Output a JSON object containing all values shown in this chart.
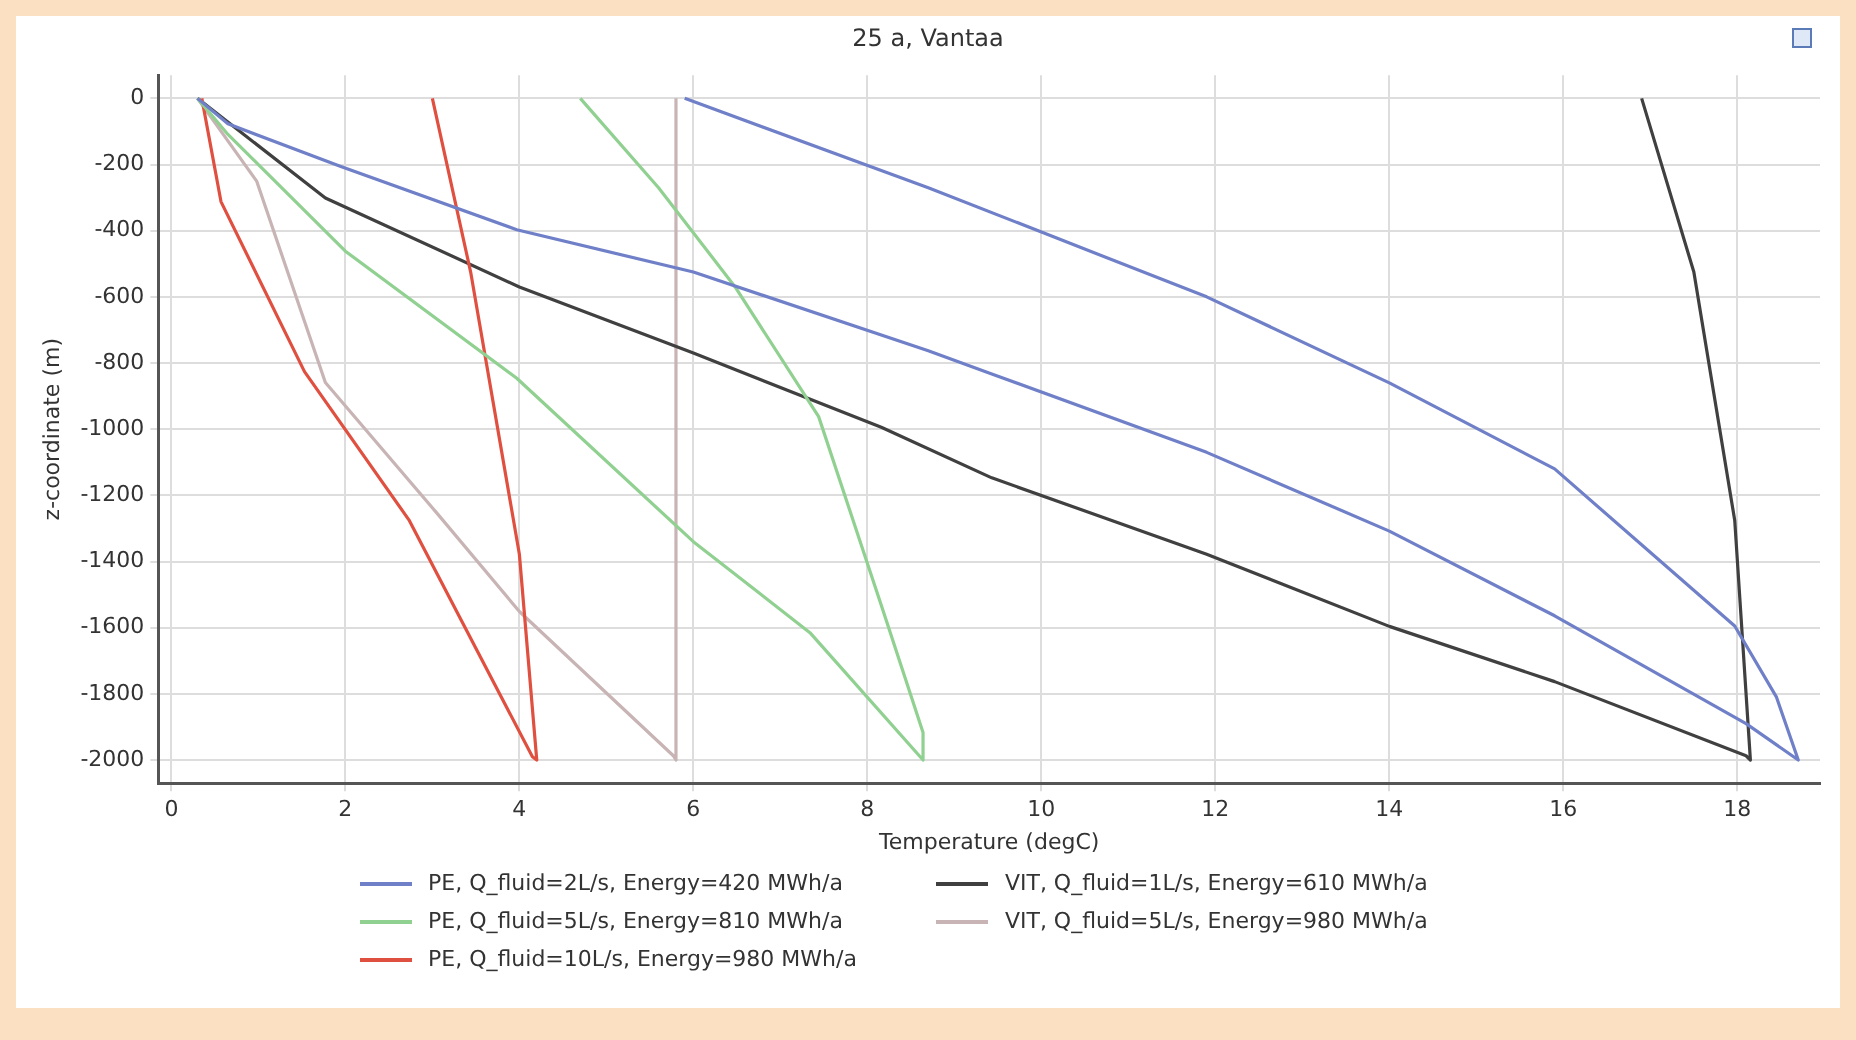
{
  "chart_data": {
    "type": "line",
    "title": "25 a, Vantaa",
    "xlabel": "Temperature (degC)",
    "ylabel": "z-coordinate (m)",
    "xlim": [
      -0.15,
      18.95
    ],
    "xticks": [
      0,
      2,
      4,
      6,
      8,
      10,
      12,
      14,
      16,
      18
    ],
    "ylim": [
      -2070,
      70
    ],
    "yticks": [
      0,
      -200,
      -400,
      -600,
      -800,
      -1000,
      -1200,
      -1400,
      -1600,
      -1800,
      -2000
    ],
    "grid": true,
    "legend": "bottom",
    "marker": "none",
    "line_style": "solid",
    "series": [
      {
        "name": "PE, Q_fluid=2L/s, Energy=420 MWh/a",
        "color": "#7080c8",
        "x": [
          0.3,
          0.65,
          1.94,
          3.97,
          6.0,
          8.7,
          9.43,
          11.9,
          14.0,
          15.9,
          18.1,
          18.7,
          18.45,
          17.97,
          15.9,
          14.0,
          11.9,
          8.7,
          5.9
        ],
        "values": [
          0,
          -77,
          -205,
          -397,
          -525,
          -763,
          -833,
          -1070,
          -1308,
          -1564,
          -1890,
          -2000,
          -1810,
          -1595,
          -1120,
          -860,
          -600,
          -270,
          0
        ]
      },
      {
        "name": "PE, Q_fluid=5L/s, Energy=810 MWh/a",
        "color": "#90d090",
        "x": [
          0.3,
          0.65,
          2.0,
          3.97,
          6.0,
          7.34,
          8.64,
          8.64,
          8.16,
          7.44,
          6.48,
          5.6,
          4.7
        ],
        "values": [
          0,
          -109,
          -462,
          -846,
          -1340,
          -1615,
          -2000,
          -1917,
          -1532,
          -962,
          -570,
          -270,
          0
        ]
      },
      {
        "name": "PE, Q_fluid=10L/s, Energy=980 MWh/a",
        "color": "#e05040",
        "x": [
          0.35,
          0.57,
          1.53,
          2.73,
          4.15,
          4.2,
          4.0,
          3.44,
          3.0
        ],
        "values": [
          0,
          -312,
          -826,
          -1274,
          -1990,
          -2000,
          -1378,
          -525,
          0
        ]
      },
      {
        "name": "VIT, Q_fluid=1L/s, Energy=610 MWh/a",
        "color": "#404040",
        "x": [
          0.3,
          1.77,
          4.0,
          6.0,
          8.16,
          9.43,
          11.9,
          14.0,
          15.9,
          18.1,
          18.15,
          17.97,
          17.5,
          16.9
        ],
        "values": [
          0,
          -301,
          -570,
          -770,
          -994,
          -1147,
          -1378,
          -1596,
          -1763,
          -1987,
          -2000,
          -1276,
          -525,
          0
        ]
      },
      {
        "name": "VIT, Q_fluid=5L/s, Energy=980 MWh/a",
        "color": "#c8b4b4",
        "x": [
          0.3,
          0.98,
          1.77,
          3.04,
          4.0,
          5.77,
          5.8,
          5.8
        ],
        "values": [
          0,
          -250,
          -859,
          -1250,
          -1551,
          -1987,
          -2000,
          0
        ]
      }
    ]
  }
}
